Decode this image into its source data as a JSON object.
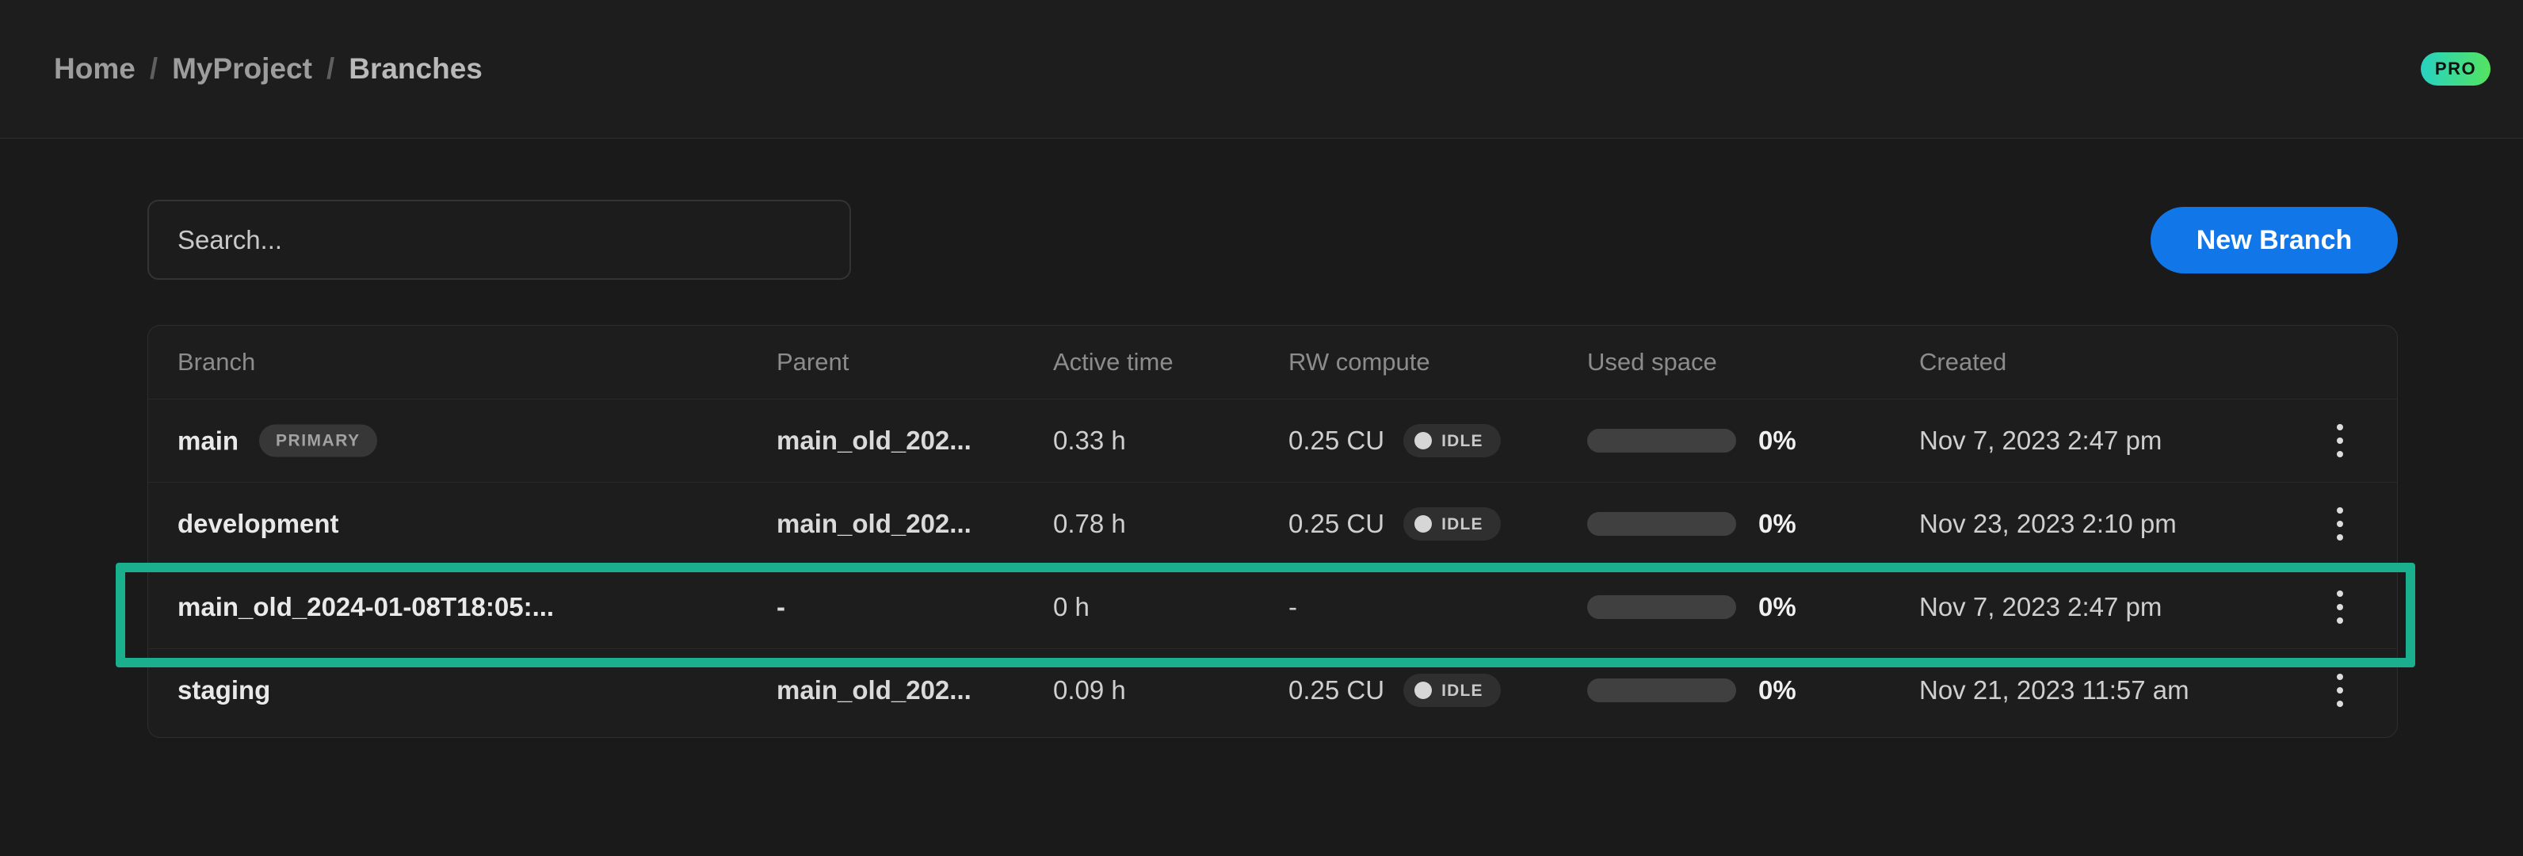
{
  "breadcrumb": {
    "items": [
      "Home",
      "MyProject",
      "Branches"
    ],
    "separator": "/"
  },
  "plan_badge": "PRO",
  "toolbar": {
    "search_placeholder": "Search...",
    "new_branch_label": "New Branch"
  },
  "table": {
    "columns": [
      "Branch",
      "Parent",
      "Active time",
      "RW compute",
      "Used space",
      "Created"
    ],
    "rows": [
      {
        "branch": "main",
        "badge": "PRIMARY",
        "parent": "main_old_202...",
        "active_time": "0.33 h",
        "rw_compute": "0.25 CU",
        "rw_status": "IDLE",
        "used_space": "0%",
        "created": "Nov 7, 2023 2:47 pm",
        "highlighted": false
      },
      {
        "branch": "development",
        "badge": null,
        "parent": "main_old_202...",
        "active_time": "0.78 h",
        "rw_compute": "0.25 CU",
        "rw_status": "IDLE",
        "used_space": "0%",
        "created": "Nov 23, 2023 2:10 pm",
        "highlighted": false
      },
      {
        "branch": "main_old_2024-01-08T18:05:...",
        "badge": null,
        "parent": "-",
        "active_time": "0 h",
        "rw_compute": "-",
        "rw_status": null,
        "used_space": "0%",
        "created": "Nov 7, 2023 2:47 pm",
        "highlighted": true
      },
      {
        "branch": "staging",
        "badge": null,
        "parent": "main_old_202...",
        "active_time": "0.09 h",
        "rw_compute": "0.25 CU",
        "rw_status": "IDLE",
        "used_space": "0%",
        "created": "Nov 21, 2023 11:57 am",
        "highlighted": false
      }
    ]
  },
  "colors": {
    "accent_highlight": "#1bb08d",
    "primary_button": "#1176e8",
    "pro_gradient_start": "#27d2c2",
    "pro_gradient_end": "#54e360",
    "page_background": "#1a1a1a",
    "card_background": "#1d1d1d"
  }
}
